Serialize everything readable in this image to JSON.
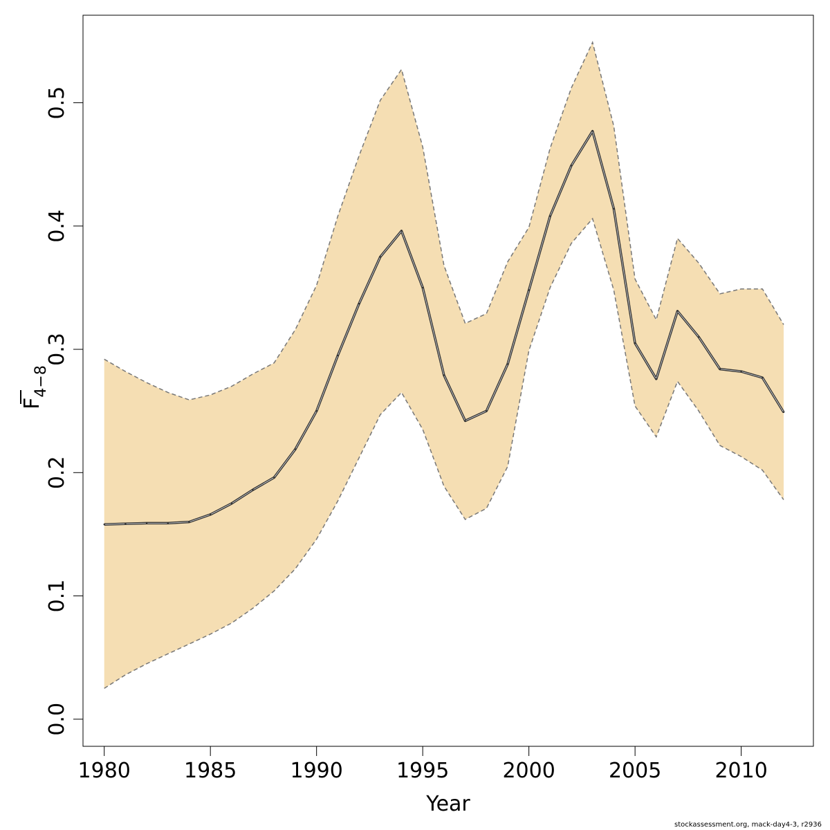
{
  "chart_data": {
    "type": "area",
    "xlabel": "Year",
    "ylabel": {
      "main": "F",
      "subscript": "4−8"
    },
    "xlim": [
      1979,
      2013.4
    ],
    "ylim": [
      -0.022,
      0.571
    ],
    "x_ticks": [
      "1980",
      "1985",
      "1990",
      "1995",
      "2000",
      "2005",
      "2010"
    ],
    "y_ticks": [
      "0.0",
      "0.1",
      "0.2",
      "0.3",
      "0.4",
      "0.5"
    ],
    "x": [
      1980,
      1981,
      1982,
      1983,
      1984,
      1985,
      1986,
      1987,
      1988,
      1989,
      1990,
      1991,
      1992,
      1993,
      1994,
      1995,
      1996,
      1997,
      1998,
      1999,
      2000,
      2001,
      2002,
      2003,
      2004,
      2005,
      2006,
      2007,
      2008,
      2009,
      2010,
      2011,
      2012
    ],
    "estimate": [
      0.158,
      0.1585,
      0.159,
      0.159,
      0.16,
      0.166,
      0.175,
      0.186,
      0.196,
      0.219,
      0.25,
      0.295,
      0.337,
      0.375,
      0.396,
      0.35,
      0.279,
      0.242,
      0.25,
      0.288,
      0.348,
      0.408,
      0.449,
      0.477,
      0.414,
      0.305,
      0.276,
      0.331,
      0.31,
      0.284,
      0.282,
      0.277,
      0.249
    ],
    "upper": [
      0.292,
      0.282,
      0.273,
      0.265,
      0.259,
      0.263,
      0.27,
      0.28,
      0.289,
      0.316,
      0.352,
      0.408,
      0.457,
      0.502,
      0.527,
      0.464,
      0.368,
      0.321,
      0.329,
      0.371,
      0.399,
      0.463,
      0.512,
      0.549,
      0.481,
      0.357,
      0.324,
      0.39,
      0.37,
      0.345,
      0.349,
      0.349,
      0.32
    ],
    "lower": [
      0.025,
      0.036,
      0.045,
      0.053,
      0.061,
      0.069,
      0.078,
      0.09,
      0.104,
      0.122,
      0.146,
      0.177,
      0.212,
      0.247,
      0.265,
      0.235,
      0.189,
      0.162,
      0.171,
      0.205,
      0.299,
      0.35,
      0.386,
      0.406,
      0.348,
      0.254,
      0.229,
      0.274,
      0.25,
      0.222,
      0.213,
      0.202,
      0.178
    ],
    "colors": {
      "band": "#f5deb3",
      "band_edge": "#777777",
      "line": "#333333",
      "axis": "#000000"
    }
  },
  "credit": "stockassessment.org, mack-day4-3, r2936"
}
